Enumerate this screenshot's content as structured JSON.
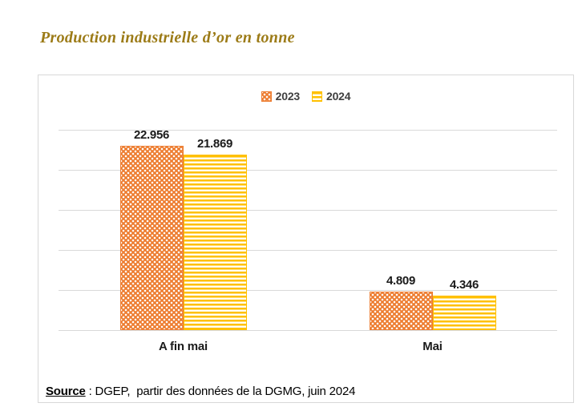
{
  "page_title": "Production industrielle d’or en tonne",
  "chart_data": {
    "type": "bar",
    "title": "Production industrielle d’or en tonne",
    "categories": [
      "A fin mai",
      "Mai"
    ],
    "series": [
      {
        "name": "2023",
        "values": [
          22.956,
          4.809
        ],
        "value_labels": [
          "22.956",
          "4.809"
        ],
        "color": "#ED7D31",
        "pattern": "dotted-diamond"
      },
      {
        "name": "2024",
        "values": [
          21.869,
          4.346
        ],
        "value_labels": [
          "21.869",
          "4.346"
        ],
        "color": "#FFC000",
        "pattern": "horizontal-stripes"
      }
    ],
    "xlabel": "",
    "ylabel": "",
    "ylim": [
      0,
      25
    ],
    "grid_step": 5,
    "grid": true,
    "legend_position": "top-center",
    "y_axis_labels_visible": false
  },
  "colors": {
    "title": "#9C7B17",
    "grid": "#D9D9D9",
    "card_border": "#D8D8D8",
    "series_2023": "#ED7D31",
    "series_2024": "#FFC000",
    "label_text": "#1A1A1A",
    "legend_text": "#3F3F3F"
  },
  "source": {
    "label": "Source",
    "rest": " : DGEP,  partir des données de la DGMG, juin 2024"
  }
}
